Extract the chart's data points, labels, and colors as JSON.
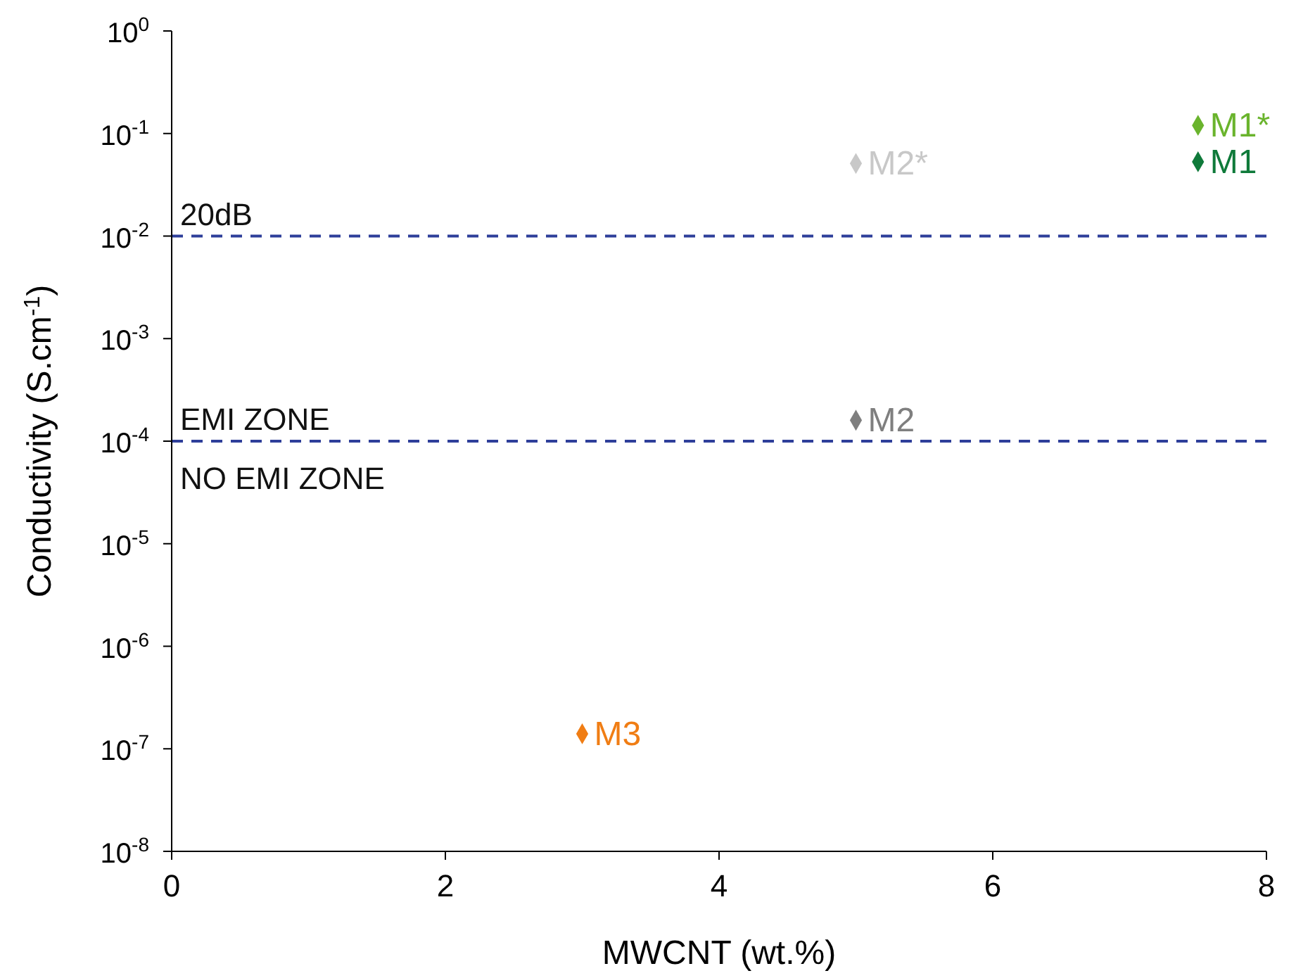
{
  "chart_data": {
    "type": "scatter",
    "xlabel": "MWCNT (wt.%)",
    "ylabel": "Conductivity (S.cm$^{-1}$)",
    "log": "y",
    "marker": "diamond",
    "xlim": [
      0,
      8
    ],
    "xticks": [
      0,
      2,
      4,
      6,
      8
    ],
    "ylim": [
      1e-08,
      1
    ],
    "yticks": [
      {
        "value": 1e-08,
        "label": "10$^{-8}$"
      },
      {
        "value": 1e-07,
        "label": "10$^{-7}$"
      },
      {
        "value": 1e-06,
        "label": "10$^{-6}$"
      },
      {
        "value": 1e-05,
        "label": "10$^{-5}$"
      },
      {
        "value": 0.0001,
        "label": "10$^{-4}$"
      },
      {
        "value": 0.001,
        "label": "10$^{-3}$"
      },
      {
        "value": 0.01,
        "label": "10$^{-2}$"
      },
      {
        "value": 0.1,
        "label": "10$^{-1}$"
      },
      {
        "value": 1,
        "label": "10$^{0}$"
      }
    ],
    "series": [
      {
        "name": "M1*",
        "color": "#6ab42d",
        "x": [
          7.5
        ],
        "values": [
          0.12
        ]
      },
      {
        "name": "M1",
        "color": "#0f7a3a",
        "x": [
          7.5
        ],
        "values": [
          0.053
        ]
      },
      {
        "name": "M2*",
        "color": "#c8c8c8",
        "x": [
          5
        ],
        "values": [
          0.051
        ]
      },
      {
        "name": "M2",
        "color": "#7f7f7f",
        "x": [
          5
        ],
        "values": [
          0.00016
        ]
      },
      {
        "name": "M3",
        "color": "#f07d14",
        "x": [
          3
        ],
        "values": [
          1.4e-07
        ]
      }
    ],
    "ref_lines": [
      {
        "axis": "y",
        "value": 0.01,
        "label": "20dB",
        "color": "#2e3f9a",
        "line_style": "dashed"
      },
      {
        "axis": "y",
        "value": 0.0001,
        "label": "EMI ZONE",
        "color": "#2e3f9a",
        "line_style": "dashed"
      }
    ],
    "annotations": [
      {
        "text": "NO EMI ZONE",
        "x": 0,
        "y": 0.0001
      }
    ]
  }
}
